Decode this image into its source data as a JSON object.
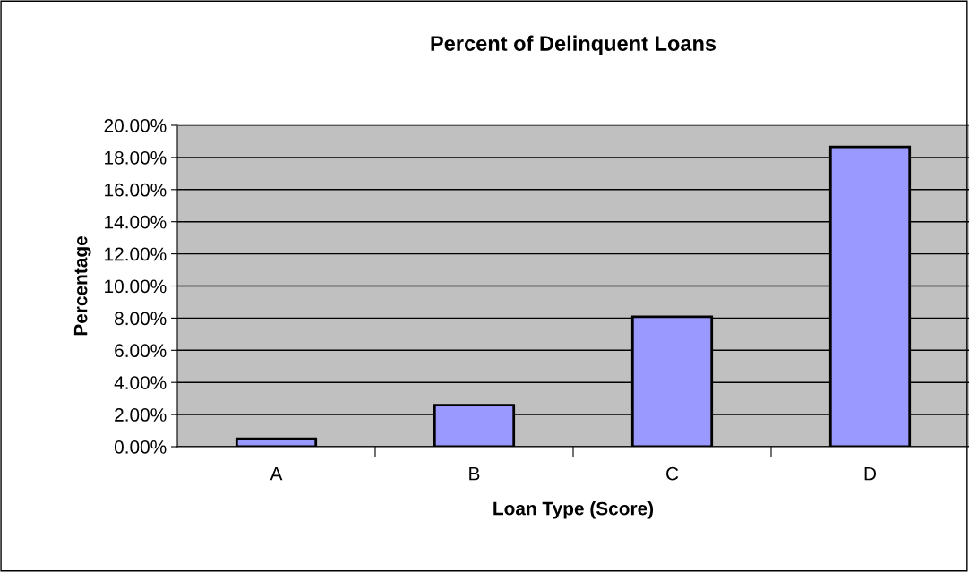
{
  "chart_data": {
    "type": "bar",
    "title": "Percent of Delinquent Loans",
    "xlabel": "Loan Type (Score)",
    "ylabel": "Percentage",
    "categories": [
      "A",
      "B",
      "C",
      "D"
    ],
    "values": [
      0.5,
      2.58,
      8.08,
      18.65
    ],
    "color": "#9999ff",
    "ylim": [
      0,
      20
    ],
    "yticks": [
      {
        "value": 0,
        "label": "0.00%"
      },
      {
        "value": 2,
        "label": "2.00%"
      },
      {
        "value": 4,
        "label": "4.00%"
      },
      {
        "value": 6,
        "label": "6.00%"
      },
      {
        "value": 8,
        "label": "8.00%"
      },
      {
        "value": 10,
        "label": "10.00%"
      },
      {
        "value": 12,
        "label": "12.00%"
      },
      {
        "value": 14,
        "label": "14.00%"
      },
      {
        "value": 16,
        "label": "16.00%"
      },
      {
        "value": 18,
        "label": "18.00%"
      },
      {
        "value": 20,
        "label": "20.00%"
      }
    ],
    "grid": "y",
    "legend": false
  }
}
